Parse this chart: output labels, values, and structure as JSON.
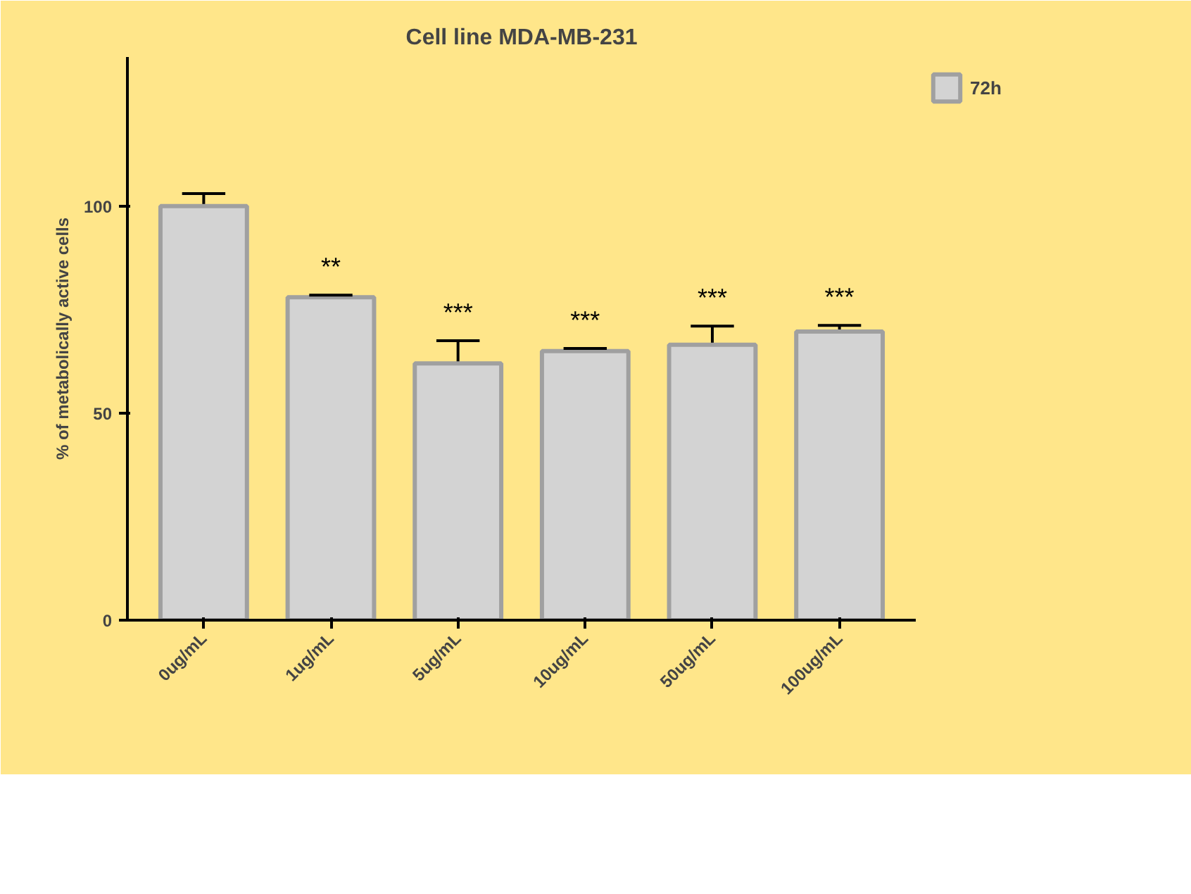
{
  "chart_data": {
    "type": "bar",
    "title": "Cell line MDA-MB-231",
    "ylabel": "% of metabolically active cells",
    "categories": [
      "0ug/mL",
      "1ug/mL",
      "5ug/mL",
      "10ug/mL",
      "50ug/mL",
      "100ug/mL"
    ],
    "series": [
      {
        "name": "72h",
        "color": "#d3d3d3",
        "values": [
          100,
          78,
          62,
          65,
          66.5,
          69.7
        ],
        "errors": [
          3,
          0.5,
          5.5,
          0.6,
          4.5,
          1.5
        ]
      }
    ],
    "ylim": [
      0,
      136
    ],
    "yticks": [
      0,
      50,
      100
    ],
    "grid": false,
    "legend": "right",
    "annotations": [
      "**",
      "***",
      "***",
      "***",
      "***"
    ]
  }
}
